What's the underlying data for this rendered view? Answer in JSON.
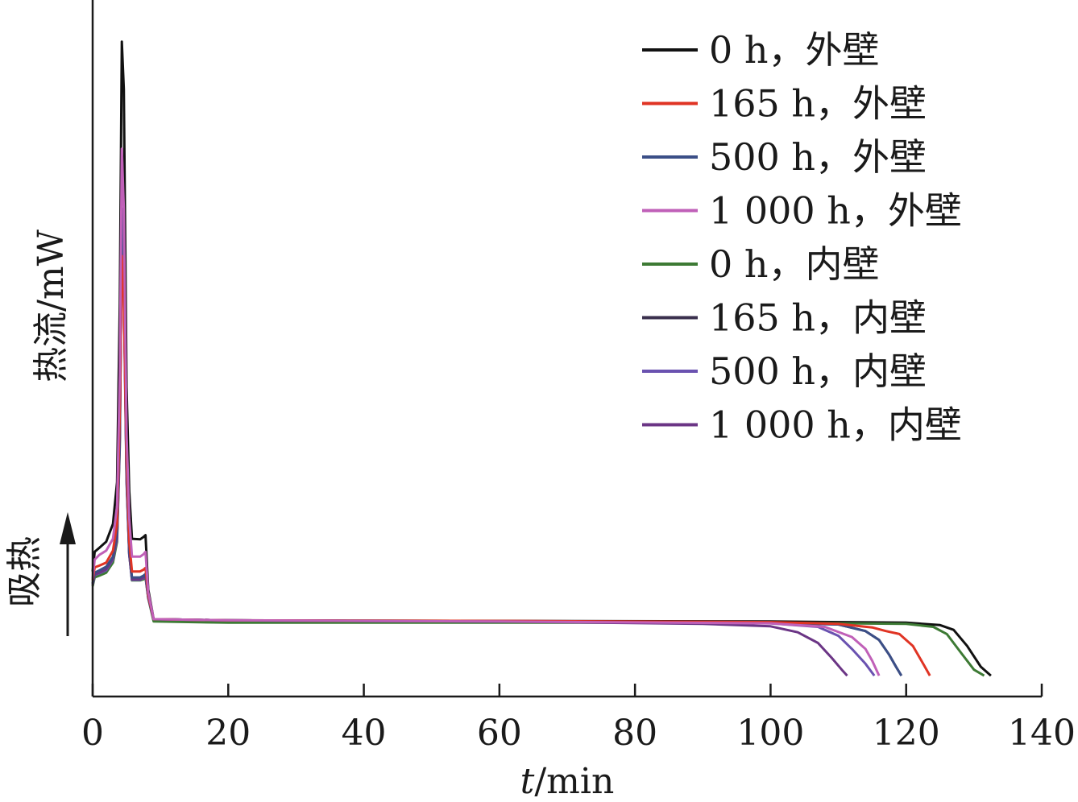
{
  "chart_data": {
    "type": "line",
    "xlabel_italic": "t",
    "xlabel_unit": "/min",
    "ylabel": "热流/mW",
    "y_direction_label": "吸热",
    "xlim": [
      0,
      140
    ],
    "x_ticks": [
      "0",
      "20",
      "40",
      "60",
      "80",
      "100",
      "120",
      "140"
    ],
    "y_ticks_shown": false,
    "grid": false,
    "legend_position": "top-right",
    "series": [
      {
        "name": "0 h，外壁",
        "color": "#111111",
        "x": [
          0,
          0.3,
          1,
          2,
          3,
          3.6,
          4,
          4.3,
          4.6,
          5.0,
          5.4,
          5.8,
          7,
          7.5,
          7.8,
          8.2,
          9,
          20,
          60,
          100,
          120,
          125,
          127,
          129,
          131,
          132.5
        ],
        "y": [
          9.0,
          12.3,
          13.0,
          14.0,
          17.0,
          24.0,
          54.0,
          98.0,
          90.0,
          40.0,
          22.5,
          14.5,
          14.4,
          14.8,
          15.1,
          6.0,
          1.0,
          0.8,
          0.7,
          0.6,
          0.4,
          0,
          -0.8,
          -3.5,
          -7.0,
          -8.5
        ]
      },
      {
        "name": "165 h，外壁",
        "color": "#e03424",
        "x": [
          0,
          0.3,
          1,
          2,
          3,
          3.6,
          4,
          4.3,
          4.6,
          5.0,
          5.4,
          5.8,
          7,
          7.5,
          7.8,
          8.2,
          9,
          20,
          60,
          100,
          110,
          115,
          117,
          119,
          121,
          122.5,
          123.5
        ],
        "y": [
          7.5,
          9.7,
          10.0,
          10.5,
          12.5,
          17.0,
          36.0,
          62.0,
          55.0,
          28.0,
          14.0,
          9.0,
          9.0,
          9.3,
          9.6,
          5.0,
          1.0,
          0.8,
          0.7,
          0.5,
          0.2,
          -0.4,
          -1.0,
          -1.5,
          -3.5,
          -6.5,
          -8.5
        ]
      },
      {
        "name": "500 h，外壁",
        "color": "#3b4f87",
        "x": [
          0,
          0.3,
          1,
          2,
          3,
          3.6,
          4,
          4.3,
          4.6,
          5.0,
          5.4,
          5.8,
          7,
          7.5,
          7.8,
          8.2,
          9,
          20,
          60,
          100,
          110,
          114,
          116,
          117.5,
          118.5,
          119.3
        ],
        "y": [
          7.0,
          8.8,
          9.2,
          9.8,
          11.5,
          15.5,
          33.0,
          70.0,
          60.0,
          26.0,
          12.5,
          8.0,
          8.0,
          8.3,
          8.6,
          4.8,
          1.0,
          0.8,
          0.6,
          0.4,
          0.1,
          -1.0,
          -2.5,
          -5.0,
          -7.0,
          -8.5
        ]
      },
      {
        "name": "1 000 h，外壁",
        "color": "#c060b8",
        "x": [
          0,
          0.3,
          1,
          2,
          3,
          3.6,
          4,
          4.3,
          4.6,
          5.0,
          5.4,
          5.8,
          7,
          7.5,
          7.8,
          8.2,
          9,
          20,
          60,
          100,
          108,
          112,
          114,
          115,
          116
        ],
        "y": [
          7.8,
          11.0,
          11.8,
          12.5,
          14.5,
          20.0,
          42.0,
          80.0,
          70.0,
          32.0,
          18.0,
          11.5,
          11.5,
          11.9,
          12.3,
          5.5,
          1.0,
          0.8,
          0.6,
          0.3,
          -0.3,
          -2.0,
          -4.0,
          -6.0,
          -8.5
        ]
      },
      {
        "name": "0 h，内壁",
        "color": "#3d7a34",
        "x": [
          0,
          0.3,
          1,
          2,
          3,
          3.6,
          4,
          4.3,
          4.6,
          5.0,
          5.4,
          5.8,
          7,
          7.5,
          7.8,
          8.2,
          9,
          20,
          60,
          100,
          120,
          124,
          126,
          128,
          130,
          131.5
        ],
        "y": [
          6.5,
          8.0,
          8.3,
          8.8,
          10.5,
          14.0,
          30.0,
          66.0,
          58.0,
          25.0,
          12.0,
          7.5,
          7.5,
          7.7,
          8.0,
          4.5,
          0.6,
          0.4,
          0.4,
          0.4,
          0.2,
          -0.3,
          -1.5,
          -4.5,
          -7.5,
          -8.5
        ]
      },
      {
        "name": "165 h，内壁",
        "color": "#3a2f4d",
        "x": [
          0,
          0.3,
          1,
          2,
          3,
          3.6,
          4,
          4.3,
          4.6,
          5.0,
          5.4,
          5.8,
          7,
          7.5,
          7.8,
          8.2,
          9,
          20,
          60,
          100,
          110,
          114,
          116,
          117.5,
          118.5,
          119.3
        ],
        "y": [
          7.0,
          8.7,
          9.0,
          9.6,
          11.3,
          15.0,
          32.0,
          68.0,
          58.0,
          25.0,
          12.2,
          7.8,
          7.8,
          8.1,
          8.4,
          4.7,
          1.0,
          0.8,
          0.6,
          0.4,
          0.1,
          -1.0,
          -2.5,
          -5.0,
          -7.0,
          -8.5
        ]
      },
      {
        "name": "500 h，内壁",
        "color": "#6a52b0",
        "x": [
          0,
          0.3,
          1,
          2,
          3,
          3.6,
          4,
          4.3,
          4.6,
          5.0,
          5.4,
          5.8,
          7,
          7.5,
          7.8,
          8.2,
          9,
          20,
          60,
          100,
          107,
          110,
          112,
          114,
          115.3
        ],
        "y": [
          6.8,
          8.4,
          8.7,
          9.2,
          11.0,
          14.5,
          31.0,
          64.0,
          55.0,
          24.0,
          11.8,
          7.6,
          7.6,
          7.9,
          8.2,
          4.6,
          1.0,
          0.8,
          0.6,
          0.3,
          -0.3,
          -1.8,
          -4.0,
          -6.5,
          -8.5
        ]
      },
      {
        "name": "1 000 h，内壁",
        "color": "#6b3585",
        "x": [
          0,
          0.3,
          1,
          2,
          3,
          3.6,
          4,
          4.3,
          4.6,
          5.0,
          5.4,
          5.8,
          7,
          7.5,
          7.8,
          8.2,
          9,
          20,
          60,
          90,
          100,
          104,
          107,
          109,
          110.5,
          111.3
        ],
        "y": [
          6.8,
          8.5,
          8.8,
          9.4,
          11.2,
          14.8,
          31.5,
          65.0,
          56.0,
          24.5,
          12.0,
          7.7,
          7.7,
          8.0,
          8.3,
          4.6,
          1.0,
          0.8,
          0.6,
          0.2,
          -0.2,
          -1.2,
          -3.0,
          -5.5,
          -7.5,
          -8.5
        ]
      }
    ]
  }
}
